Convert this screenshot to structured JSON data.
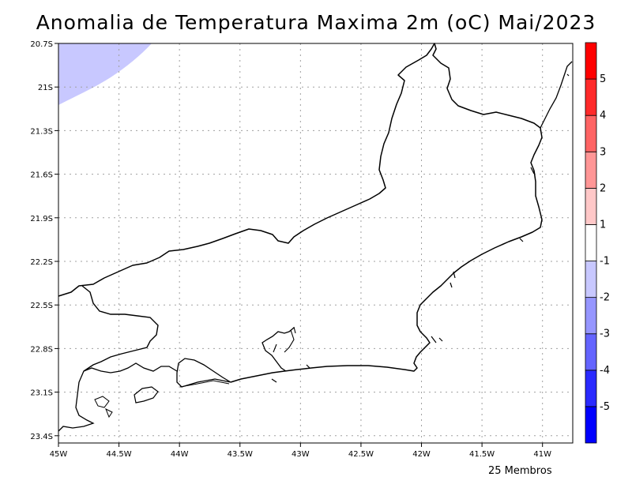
{
  "title": "Anomalia de Temperatura Maxima 2m (oC) Mai/2023",
  "footer": "25 Membros",
  "map": {
    "lon_range": [
      -45.0,
      -40.75
    ],
    "lat_range": [
      -23.45,
      -20.7
    ],
    "lon_ticks": [
      {
        "value": -45.0,
        "label": "45W"
      },
      {
        "value": -44.5,
        "label": "44.5W"
      },
      {
        "value": -44.0,
        "label": "44W"
      },
      {
        "value": -43.5,
        "label": "43.5W"
      },
      {
        "value": -43.0,
        "label": "43W"
      },
      {
        "value": -42.5,
        "label": "42.5W"
      },
      {
        "value": -42.0,
        "label": "42W"
      },
      {
        "value": -41.5,
        "label": "41.5W"
      },
      {
        "value": -41.0,
        "label": "41W"
      }
    ],
    "lat_ticks": [
      {
        "value": -20.7,
        "label": "20.7S"
      },
      {
        "value": -21.0,
        "label": "21S"
      },
      {
        "value": -21.3,
        "label": "21.3S"
      },
      {
        "value": -21.6,
        "label": "21.6S"
      },
      {
        "value": -21.9,
        "label": "21.9S"
      },
      {
        "value": -22.2,
        "label": "22.2S"
      },
      {
        "value": -22.5,
        "label": "22.5S"
      },
      {
        "value": -22.8,
        "label": "22.8S"
      },
      {
        "value": -23.1,
        "label": "23.1S"
      },
      {
        "value": -23.4,
        "label": "23.4S"
      }
    ],
    "grid": true,
    "anomaly_region": {
      "anomaly_class": "-1 to -2",
      "color": "#c8c8ff",
      "location": "top-left corner"
    }
  },
  "colorbar": {
    "segments": [
      {
        "color": "#0000ff"
      },
      {
        "color": "#2a2aff"
      },
      {
        "color": "#6464ff"
      },
      {
        "color": "#9696ff"
      },
      {
        "color": "#c8c8ff"
      },
      {
        "color": "#ffffff"
      },
      {
        "color": "#ffc8c8"
      },
      {
        "color": "#ff9696"
      },
      {
        "color": "#ff6464"
      },
      {
        "color": "#ff2a2a"
      },
      {
        "color": "#ff0000"
      }
    ],
    "labels": [
      "-5",
      "-4",
      "-3",
      "-2",
      "-1",
      "1",
      "2",
      "3",
      "4",
      "5"
    ]
  },
  "colors": {
    "grid": "#a0a0a0",
    "coast": "#000000"
  }
}
